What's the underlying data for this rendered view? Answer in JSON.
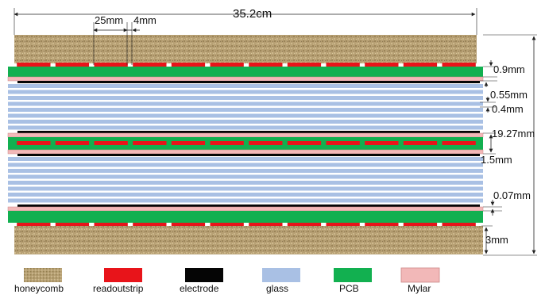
{
  "dimensions": {
    "total_width": "35.2cm",
    "strip_width": "25mm",
    "strip_gap": "4mm",
    "pcb_thickness": "0.9mm",
    "mylar_thickness": "0.55mm",
    "glass_thickness": "0.4mm",
    "total_height": "19.27mm",
    "gap_1": "1.5mm",
    "gap_2": "0.07mm",
    "honeycomb_thickness": "3mm"
  },
  "legend": [
    {
      "key": "honeycomb",
      "label": "honeycomb",
      "color": "#b9a37a"
    },
    {
      "key": "readoutstrip",
      "label": "readoutstrip",
      "color": "#e8141a"
    },
    {
      "key": "electrode",
      "label": "electrode",
      "color": "#050505"
    },
    {
      "key": "glass",
      "label": "glass",
      "color": "#a9c0e4"
    },
    {
      "key": "pcb",
      "label": "PCB",
      "color": "#12b050"
    },
    {
      "key": "mylar",
      "label": "Mylar",
      "color": "#f2b8b8"
    }
  ],
  "strip_count": 12
}
